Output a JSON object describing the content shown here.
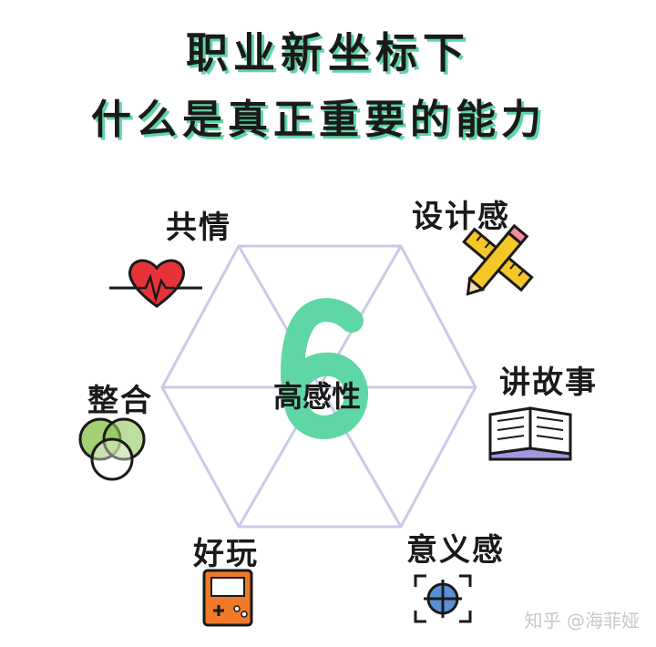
{
  "title": {
    "line1": "职业新坐标下",
    "line2": "什么是真正重要的能力"
  },
  "center": {
    "number": "6",
    "label": "高感性"
  },
  "nodes": {
    "empathy": "共情",
    "design": "设计感",
    "storytelling": "讲故事",
    "meaning": "意义感",
    "play": "好玩",
    "symphony": "整合"
  },
  "watermark": "知乎 @海菲娅",
  "colors": {
    "accent_green": "#5fd6a6",
    "hex_lines": "#c9cbe6",
    "heart_red": "#e8323a",
    "pencil_yellow": "#f3c727",
    "book_purple": "#a596e0",
    "venn_green": "#93c85b",
    "game_orange": "#f07a2a",
    "target_blue": "#5a8fd8"
  },
  "icons": [
    "heart-icon",
    "pencil-ruler-icon",
    "book-icon",
    "target-icon",
    "game-console-icon",
    "venn-icon"
  ]
}
